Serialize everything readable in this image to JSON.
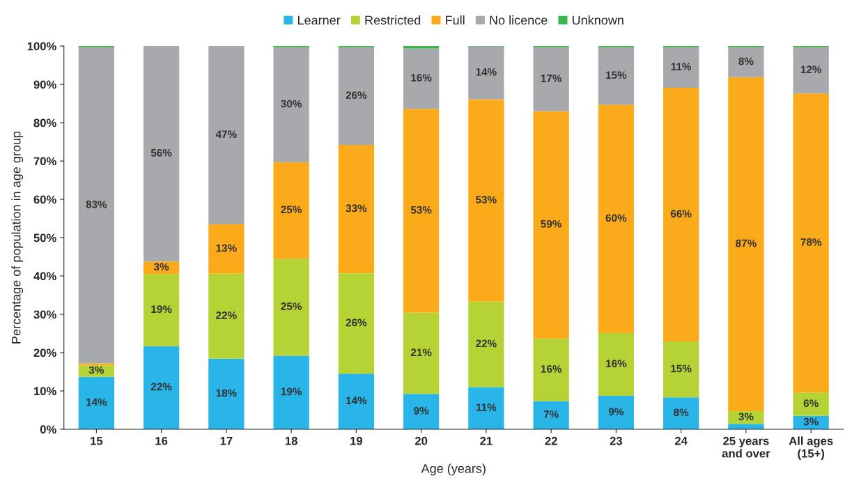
{
  "chart_data": {
    "type": "bar",
    "stacked": true,
    "xlabel": "Age (years)",
    "ylabel": "Percentage of population in age group",
    "categories": [
      "15",
      "16",
      "17",
      "18",
      "19",
      "20",
      "21",
      "22",
      "23",
      "24",
      "25 years\nand over",
      "All ages\n(15+)"
    ],
    "series": [
      {
        "name": "Learner",
        "color": "#29b5e8",
        "values": [
          13.7,
          21.7,
          18.4,
          19.2,
          14.5,
          9.2,
          11.0,
          7.3,
          8.7,
          8.3,
          1.4,
          3.5
        ],
        "value_labels": [
          "14%",
          "22%",
          "18%",
          "19%",
          "14%",
          "9%",
          "11%",
          "7%",
          "9%",
          "8%",
          null,
          "3%"
        ]
      },
      {
        "name": "Restricted",
        "color": "#b5d334",
        "values": [
          3.0,
          18.8,
          22.2,
          25.3,
          26.2,
          21.2,
          22.3,
          16.4,
          16.4,
          14.6,
          3.3,
          6.1
        ],
        "value_labels": [
          "3%",
          "19%",
          "22%",
          "25%",
          "26%",
          "21%",
          "22%",
          "16%",
          "16%",
          "15%",
          "3%",
          "6%"
        ]
      },
      {
        "name": "Full",
        "color": "#fbab19",
        "values": [
          0.5,
          3.3,
          12.9,
          25.2,
          33.5,
          53.2,
          52.8,
          59.3,
          59.6,
          66.2,
          87.2,
          78.0
        ],
        "value_labels": [
          null,
          "3%",
          "13%",
          "25%",
          "33%",
          "53%",
          "53%",
          "59%",
          "60%",
          "66%",
          "87%",
          "78%"
        ]
      },
      {
        "name": "No licence",
        "color": "#a7a9ac",
        "values": [
          82.5,
          56.2,
          46.5,
          30.0,
          25.5,
          15.8,
          13.8,
          16.7,
          15.0,
          10.6,
          7.8,
          12.1
        ],
        "value_labels": [
          "83%",
          "56%",
          "47%",
          "30%",
          "26%",
          "16%",
          "14%",
          "17%",
          "15%",
          "11%",
          "8%",
          "12%"
        ]
      },
      {
        "name": "Unknown",
        "color": "#3cb54a",
        "values": [
          0.3,
          0.0,
          0.0,
          0.3,
          0.3,
          0.6,
          0.1,
          0.3,
          0.3,
          0.3,
          0.3,
          0.3
        ]
      }
    ],
    "ylim": [
      0,
      100
    ],
    "yticks": [
      {
        "value": 0,
        "label": "0%"
      },
      {
        "value": 10,
        "label": "10%"
      },
      {
        "value": 20,
        "label": "20%"
      },
      {
        "value": 30,
        "label": "30%"
      },
      {
        "value": 40,
        "label": "40%"
      },
      {
        "value": 50,
        "label": "50%"
      },
      {
        "value": 60,
        "label": "60%"
      },
      {
        "value": 70,
        "label": "70%"
      },
      {
        "value": 80,
        "label": "80%"
      },
      {
        "value": 90,
        "label": "90%"
      },
      {
        "value": 100,
        "label": "100%"
      }
    ],
    "grid": false,
    "legend": "top"
  }
}
